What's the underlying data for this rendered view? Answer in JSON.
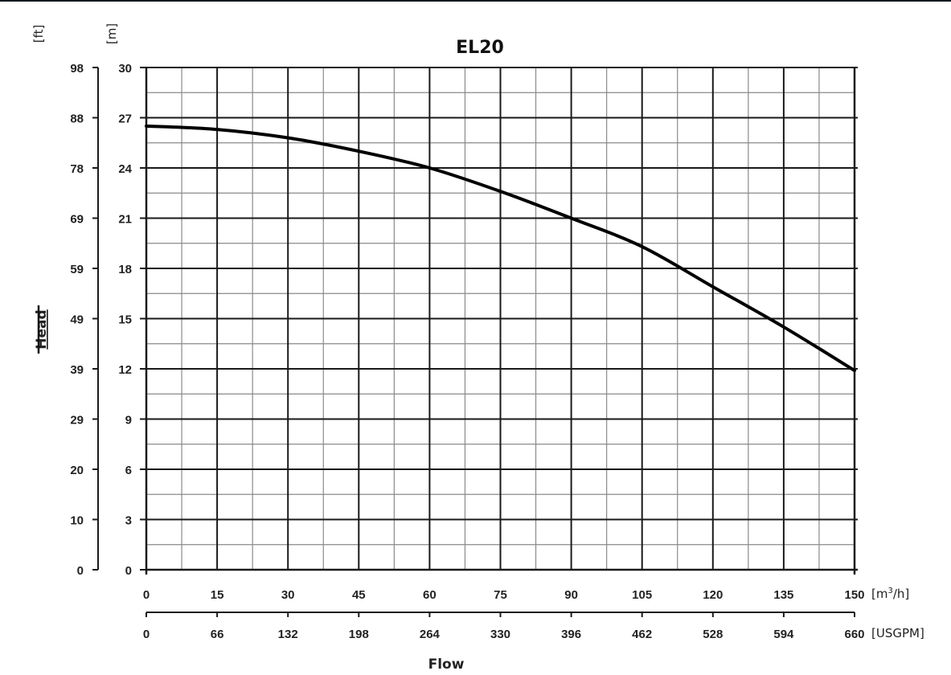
{
  "chart_data": {
    "type": "line",
    "title": "EL20",
    "xlabel": "Flow",
    "ylabel": "Head",
    "x_primary_unit": "[m³/h]",
    "x_secondary_unit": "[USGPM]",
    "y_primary_unit": "[m]",
    "y_secondary_unit": "[ft]",
    "x_primary_ticks": [
      0,
      15,
      30,
      45,
      60,
      75,
      90,
      105,
      120,
      135,
      150
    ],
    "x_secondary_ticks": [
      0,
      66,
      132,
      198,
      264,
      330,
      396,
      462,
      528,
      594,
      660
    ],
    "y_primary_ticks": [
      0,
      3,
      6,
      9,
      12,
      15,
      18,
      21,
      24,
      27,
      30
    ],
    "y_secondary_ticks": [
      0,
      10,
      20,
      29,
      39,
      49,
      59,
      69,
      78,
      88,
      98
    ],
    "xlim": [
      0,
      150
    ],
    "ylim": [
      0,
      30
    ],
    "grid": true,
    "legend": null,
    "series": [
      {
        "name": "EL20",
        "x": [
          0,
          15,
          30,
          45,
          60,
          75,
          90,
          105,
          120,
          135,
          150
        ],
        "values": [
          26.5,
          26.3,
          25.8,
          25.0,
          24.0,
          22.6,
          21.0,
          19.3,
          16.9,
          14.5,
          11.9
        ]
      }
    ]
  },
  "labels": {
    "title": "EL20",
    "xlabel": "Flow",
    "ylabel": "Head",
    "unit_ft": "[ft]",
    "unit_m": "[m]",
    "unit_m3h_prefix": "[m",
    "unit_m3h_sup": "3",
    "unit_m3h_suffix": "/h]",
    "unit_usgpm": "[USGPM]"
  },
  "colors": {
    "curve": "#000000",
    "major_grid": "#1a1a1a",
    "minor_grid": "#8a8a8a",
    "background": "#ffffff"
  }
}
